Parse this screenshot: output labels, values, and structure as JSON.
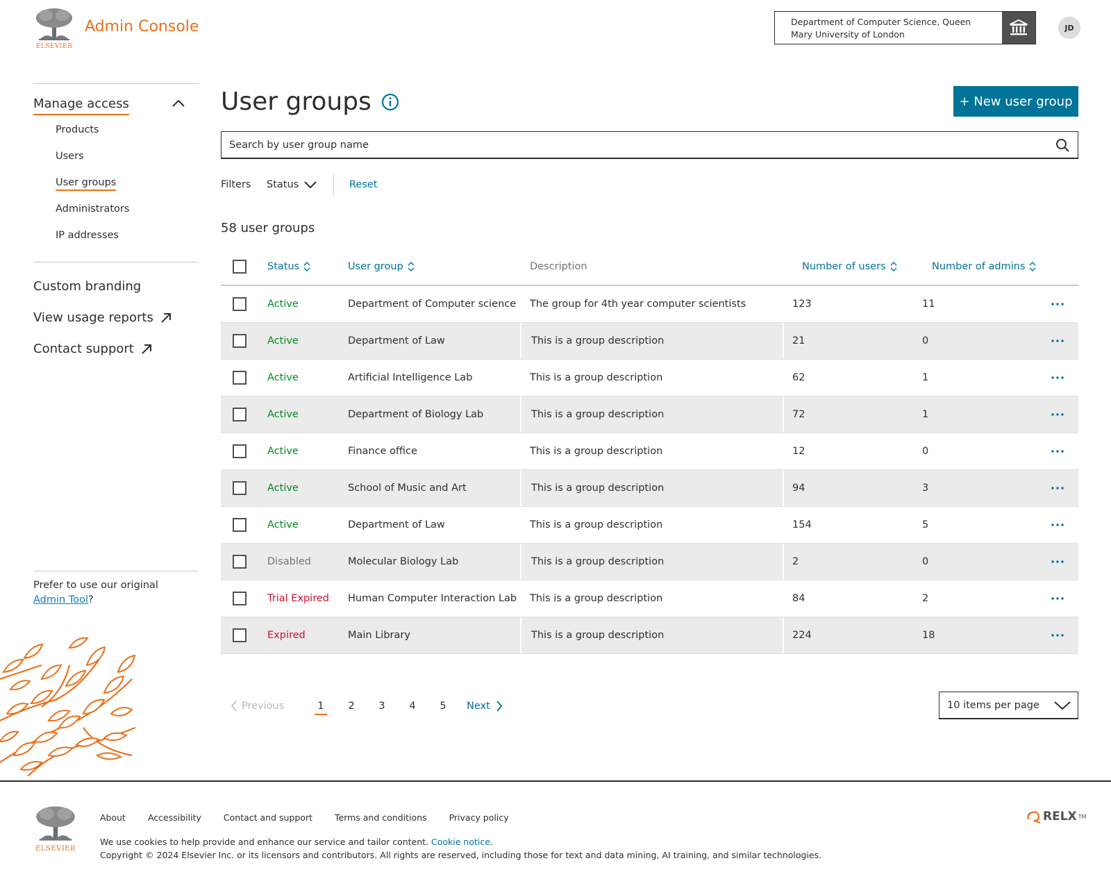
{
  "header": {
    "app_title": "Admin Console",
    "logo_text": "ELSEVIER",
    "organization": "Department of Computer Science, Queen Mary University of London",
    "avatar_initials": "JD"
  },
  "sidebar": {
    "manage_access": "Manage access",
    "items": [
      {
        "label": "Products",
        "active": false
      },
      {
        "label": "Users",
        "active": false
      },
      {
        "label": "User groups",
        "active": true
      },
      {
        "label": "Administrators",
        "active": false
      },
      {
        "label": "IP addresses",
        "active": false
      }
    ],
    "custom_branding": "Custom branding",
    "usage_reports": "View usage reports",
    "contact_support": "Contact support",
    "footer_prefix": "Prefer to use our original",
    "footer_link": "Admin Tool",
    "footer_suffix": "?"
  },
  "main": {
    "title": "User groups",
    "new_button": "+ New user group",
    "search_placeholder": "Search by user group name",
    "filters_label": "Filters",
    "status_filter": "Status",
    "reset": "Reset",
    "count_text": "58 user groups"
  },
  "table": {
    "headers": {
      "status": "Status",
      "group": "User group",
      "description": "Description",
      "users": "Number of users",
      "admins": "Number of admins"
    },
    "rows": [
      {
        "status": "Active",
        "status_type": "active",
        "group": "Department of Computer science",
        "description": "The group for 4th year computer scientists",
        "users": "123",
        "admins": "11"
      },
      {
        "status": "Active",
        "status_type": "active",
        "group": "Department of Law",
        "description": "This is a group description",
        "users": "21",
        "admins": "0"
      },
      {
        "status": "Active",
        "status_type": "active",
        "group": "Artificial Intelligence Lab",
        "description": "This is a group description",
        "users": "62",
        "admins": "1"
      },
      {
        "status": "Active",
        "status_type": "active",
        "group": "Department of Biology Lab",
        "description": "This is a group description",
        "users": "72",
        "admins": "1"
      },
      {
        "status": "Active",
        "status_type": "active",
        "group": "Finance office",
        "description": "This is a group description",
        "users": "12",
        "admins": "0"
      },
      {
        "status": "Active",
        "status_type": "active",
        "group": "School of Music and Art",
        "description": "This is a group description",
        "users": "94",
        "admins": "3"
      },
      {
        "status": "Active",
        "status_type": "active",
        "group": "Department of Law",
        "description": "This is a group description",
        "users": "154",
        "admins": "5"
      },
      {
        "status": "Disabled",
        "status_type": "disabled",
        "group": "Molecular Biology Lab",
        "description": "This is a group description",
        "users": "2",
        "admins": "0"
      },
      {
        "status": "Trial Expired",
        "status_type": "expired",
        "group": "Human Computer Interaction Lab",
        "description": "This is a group description",
        "users": "84",
        "admins": "2"
      },
      {
        "status": "Expired",
        "status_type": "expired",
        "group": "Main Library",
        "description": "This is a group description",
        "users": "224",
        "admins": "18"
      }
    ]
  },
  "pagination": {
    "previous": "Previous",
    "pages": [
      "1",
      "2",
      "3",
      "4",
      "5"
    ],
    "current": "1",
    "next": "Next",
    "per_page": "10 items per page"
  },
  "footer": {
    "logo_text": "ELSEVIER",
    "links": [
      "About",
      "Accessibility",
      "Contact and support",
      "Terms and conditions",
      "Privacy policy"
    ],
    "cookie_text": "We use cookies to help provide and enhance our service and tailor content.",
    "cookie_link": "Cookie notice",
    "copyright": "Copyright © 2024 Elsevier Inc. or its licensors and contributors. All rights are reserved, including those for text and data mining, AI training, and similar technologies.",
    "relx": "RELX",
    "relx_tm": "TM"
  },
  "colors": {
    "brand_orange": "#e9711c",
    "primary_teal": "#007398",
    "active_green": "#008a22",
    "expired_red": "#c8102e"
  },
  "icons": {
    "org": "institution-icon",
    "info": "info-icon",
    "search": "search-icon",
    "more": "more-horizontal-icon"
  }
}
